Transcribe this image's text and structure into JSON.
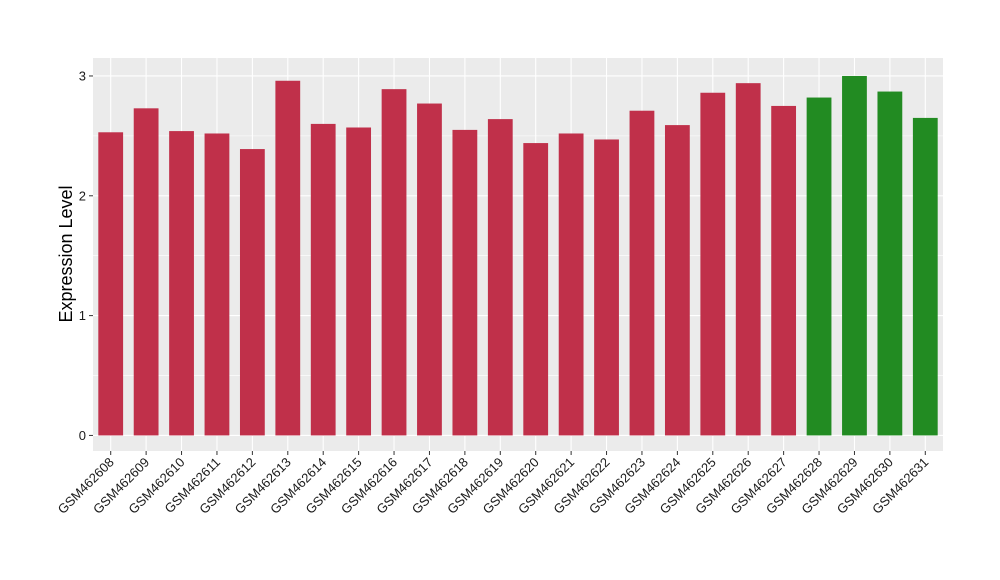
{
  "chart_data": {
    "type": "bar",
    "title": "",
    "xlabel": "",
    "ylabel": "Expression Level",
    "ylim": [
      -0.13,
      3.15
    ],
    "yticks": [
      0,
      1,
      2,
      3
    ],
    "grid": true,
    "legend": "none",
    "categories": [
      "GSM462608",
      "GSM462609",
      "GSM462610",
      "GSM462611",
      "GSM462612",
      "GSM462613",
      "GSM462614",
      "GSM462615",
      "GSM462616",
      "GSM462617",
      "GSM462618",
      "GSM462619",
      "GSM462620",
      "GSM462621",
      "GSM462622",
      "GSM462623",
      "GSM462624",
      "GSM462625",
      "GSM462626",
      "GSM462627",
      "GSM462628",
      "GSM462629",
      "GSM462630",
      "GSM462631"
    ],
    "values": [
      2.53,
      2.73,
      2.54,
      2.52,
      2.39,
      2.96,
      2.6,
      2.57,
      2.89,
      2.77,
      2.55,
      2.64,
      2.44,
      2.52,
      2.47,
      2.71,
      2.59,
      2.86,
      2.94,
      2.75,
      2.82,
      3.0,
      2.87,
      2.65
    ],
    "bar_groups": [
      "a",
      "a",
      "a",
      "a",
      "a",
      "a",
      "a",
      "a",
      "a",
      "a",
      "a",
      "a",
      "a",
      "a",
      "a",
      "a",
      "a",
      "a",
      "a",
      "a",
      "b",
      "b",
      "b",
      "b"
    ],
    "colors": {
      "a": "#C0304A",
      "b": "#228B22"
    },
    "panel_background": "#EBEBEB",
    "grid_color": "#FFFFFF"
  }
}
